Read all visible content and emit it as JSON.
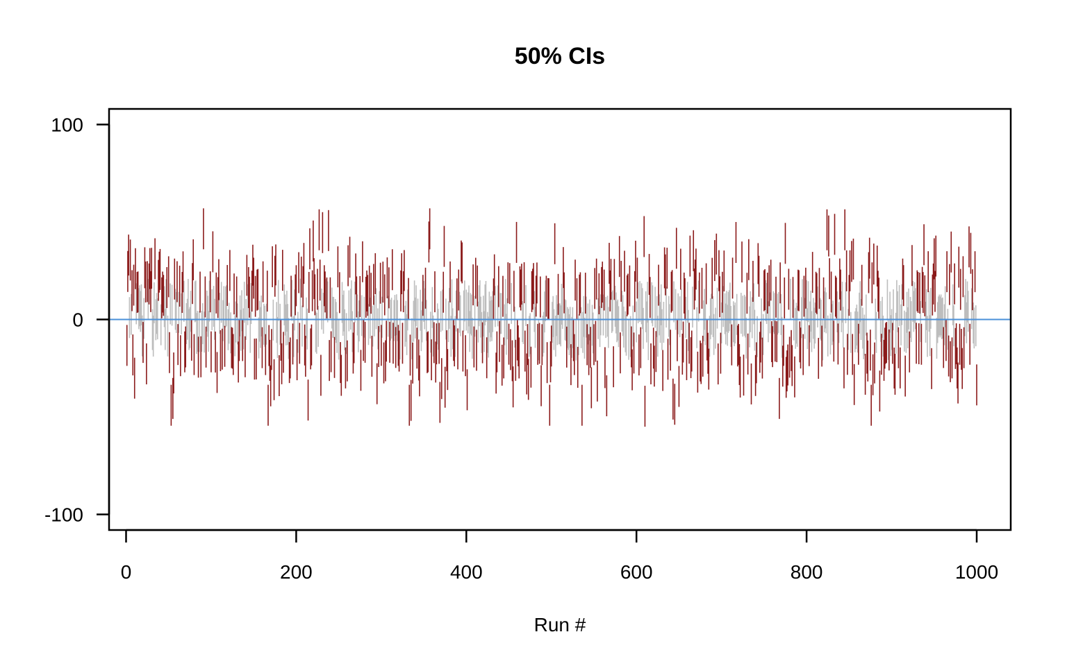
{
  "chart_data": {
    "type": "interval",
    "title": "50% CIs",
    "xlabel": "Run #",
    "ylabel": "",
    "xlim": [
      -20,
      1040
    ],
    "ylim": [
      -108,
      108
    ],
    "x_ticks": [
      0,
      200,
      400,
      600,
      800,
      1000
    ],
    "y_ticks": [
      -100,
      0,
      100
    ],
    "reference_line": {
      "y": 0,
      "color": "#4a90d9"
    },
    "n_runs": 1000,
    "interval_range_summary": {
      "min_lower": -55,
      "max_upper": 57
    },
    "colors": {
      "covers_zero": "#bdbdbd",
      "misses_zero": "#8b1a1a"
    },
    "notable_intervals": [
      {
        "x": 5,
        "lower": 20,
        "upper": 41
      },
      {
        "x": 55,
        "lower": -51,
        "upper": -30
      },
      {
        "x": 91,
        "lower": 36,
        "upper": 57
      },
      {
        "x": 335,
        "lower": -52,
        "upper": -31
      },
      {
        "x": 357,
        "lower": 36,
        "upper": 57
      },
      {
        "x": 610,
        "lower": -55,
        "upper": -34
      },
      {
        "x": 645,
        "lower": -54,
        "upper": -33
      },
      {
        "x": 717,
        "lower": 29,
        "upper": 50
      },
      {
        "x": 768,
        "lower": -51,
        "upper": -30
      },
      {
        "x": 998,
        "lower": 14,
        "upper": 35
      }
    ]
  }
}
